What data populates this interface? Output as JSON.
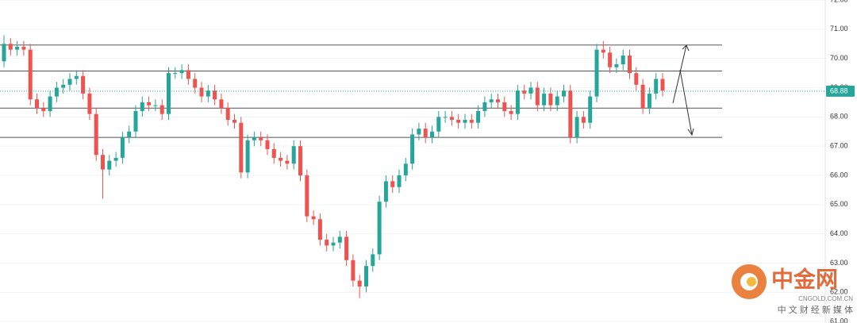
{
  "chart_data": {
    "type": "candlestick",
    "open": [
      69.9,
      70.5,
      70.3,
      70.4,
      70.3,
      68.6,
      68.3,
      68.2,
      68.7,
      69.0,
      69.1,
      69.3,
      69.4,
      68.8,
      68.1,
      66.7,
      66.2,
      66.5,
      66.6,
      67.3,
      67.5,
      68.2,
      68.5,
      68.4,
      68.4,
      68.1,
      69.5,
      69.5,
      69.6,
      69.3,
      69.0,
      68.7,
      68.9,
      68.6,
      68.3,
      67.9,
      67.8,
      66.1,
      67.2,
      67.3,
      67.2,
      66.9,
      66.6,
      66.5,
      66.4,
      67.0,
      66.0,
      64.6,
      64.5,
      63.8,
      63.6,
      63.7,
      63.9,
      63.1,
      62.4,
      62.2,
      62.9,
      63.3,
      65.1,
      65.8,
      65.6,
      66.0,
      66.4,
      67.4,
      67.6,
      67.3,
      67.5,
      68.0,
      68.0,
      67.9,
      67.8,
      67.9,
      67.8,
      68.2,
      68.5,
      68.6,
      68.5,
      68.2,
      68.1,
      68.9,
      68.8,
      69.0,
      68.4,
      68.8,
      68.4,
      68.7,
      68.9,
      67.3,
      68.0,
      67.8,
      68.7,
      70.3,
      70.2,
      69.7,
      69.8,
      70.1,
      69.5,
      69.1,
      68.3,
      68.8,
      69.3
    ],
    "high": [
      70.8,
      70.7,
      70.6,
      70.6,
      70.5,
      68.8,
      68.5,
      68.9,
      69.2,
      69.3,
      69.5,
      69.6,
      69.6,
      69.0,
      68.3,
      66.9,
      66.7,
      66.8,
      67.5,
      67.7,
      68.4,
      68.7,
      68.7,
      68.6,
      68.6,
      69.7,
      69.7,
      69.8,
      69.8,
      69.5,
      69.2,
      69.1,
      69.1,
      68.8,
      68.5,
      68.1,
      68.0,
      67.4,
      67.5,
      67.5,
      67.4,
      67.1,
      66.8,
      66.7,
      67.2,
      67.2,
      66.2,
      64.8,
      64.7,
      64.0,
      63.9,
      64.1,
      64.1,
      63.3,
      62.6,
      63.1,
      63.5,
      65.3,
      66.0,
      66.0,
      66.2,
      66.6,
      67.6,
      67.8,
      67.8,
      67.7,
      68.2,
      68.2,
      68.2,
      68.1,
      68.1,
      68.1,
      68.4,
      68.7,
      68.8,
      68.8,
      68.7,
      68.4,
      69.1,
      69.1,
      69.2,
      69.2,
      69.0,
      69.0,
      68.9,
      69.1,
      69.1,
      68.2,
      68.2,
      68.9,
      70.5,
      70.6,
      70.4,
      70.0,
      70.3,
      70.3,
      69.7,
      69.3,
      69.0,
      69.5,
      69.5
    ],
    "low": [
      69.7,
      70.1,
      70.1,
      70.1,
      68.4,
      68.1,
      68.0,
      68.0,
      68.5,
      68.8,
      68.9,
      69.1,
      68.6,
      67.9,
      66.5,
      65.2,
      66.0,
      66.3,
      66.4,
      67.1,
      67.3,
      68.0,
      68.2,
      68.2,
      67.9,
      67.9,
      69.3,
      69.3,
      69.1,
      68.8,
      68.5,
      68.5,
      68.4,
      68.1,
      67.7,
      67.6,
      65.9,
      65.9,
      67.0,
      67.0,
      66.7,
      66.4,
      66.3,
      66.2,
      66.2,
      65.8,
      64.4,
      64.3,
      63.6,
      63.4,
      63.4,
      63.5,
      62.9,
      62.2,
      61.8,
      62.0,
      62.7,
      63.1,
      64.9,
      65.4,
      65.4,
      65.8,
      66.2,
      67.2,
      67.1,
      67.1,
      67.3,
      67.8,
      67.7,
      67.6,
      67.6,
      67.6,
      67.6,
      68.0,
      68.3,
      68.3,
      68.0,
      67.9,
      67.9,
      68.6,
      68.6,
      68.2,
      68.2,
      68.2,
      68.2,
      68.5,
      67.1,
      67.1,
      67.6,
      67.6,
      68.5,
      70.0,
      69.5,
      69.5,
      69.6,
      69.3,
      68.9,
      68.1,
      68.1,
      68.6,
      68.7
    ],
    "close": [
      70.5,
      70.3,
      70.4,
      70.3,
      68.6,
      68.3,
      68.2,
      68.7,
      69.0,
      69.1,
      69.3,
      69.4,
      68.8,
      68.1,
      66.7,
      66.2,
      66.5,
      66.6,
      67.3,
      67.5,
      68.2,
      68.5,
      68.4,
      68.4,
      68.1,
      69.5,
      69.5,
      69.6,
      69.3,
      69.0,
      68.7,
      68.9,
      68.6,
      68.3,
      67.9,
      67.8,
      66.1,
      67.2,
      67.3,
      67.2,
      66.9,
      66.6,
      66.5,
      66.4,
      67.0,
      66.0,
      64.6,
      64.5,
      63.8,
      63.6,
      63.7,
      63.9,
      63.1,
      62.4,
      62.2,
      62.9,
      63.3,
      65.1,
      65.8,
      65.6,
      66.0,
      66.4,
      67.4,
      67.6,
      67.3,
      67.5,
      68.0,
      68.0,
      67.9,
      67.8,
      67.9,
      67.8,
      68.2,
      68.5,
      68.6,
      68.5,
      68.2,
      68.1,
      68.9,
      68.8,
      69.0,
      68.4,
      68.8,
      68.4,
      68.7,
      68.9,
      67.3,
      68.0,
      67.8,
      68.7,
      70.3,
      70.2,
      69.7,
      69.8,
      70.1,
      69.5,
      69.1,
      68.3,
      68.8,
      69.3,
      68.9
    ],
    "up_color": "#26a69a",
    "down_color": "#ef5350",
    "ylim": [
      60.95,
      72.0
    ],
    "yticks": [
      {
        "value": 61,
        "label": "61.00"
      },
      {
        "value": 62,
        "label": "62.00"
      },
      {
        "value": 63,
        "label": "63.00"
      },
      {
        "value": 64,
        "label": "64.00"
      },
      {
        "value": 65,
        "label": "65.00"
      },
      {
        "value": 66,
        "label": "66.00"
      },
      {
        "value": 67,
        "label": "67.00"
      },
      {
        "value": 68,
        "label": "68.00"
      },
      {
        "value": 69,
        "label": "69.00"
      },
      {
        "value": 70,
        "label": "70.00"
      },
      {
        "value": 71,
        "label": "71.00"
      },
      {
        "value": 72,
        "label": "72.00"
      }
    ],
    "grid": true,
    "levels": [
      70.46,
      69.57,
      68.3,
      67.3
    ],
    "last_price": 68.88
  },
  "watermark": {
    "name": "中金网",
    "site": "CNGOLD.COM.CN",
    "slogan": "中 文 财 经 新 媒 体"
  }
}
